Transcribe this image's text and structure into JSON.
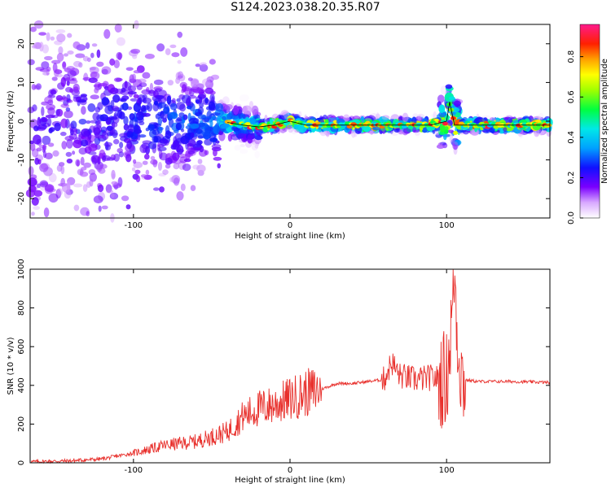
{
  "figure_title": "S124.2023.038.20.35.R07",
  "colors": {
    "axes": "#000000",
    "snr_line": "#e8302c",
    "ridge_line": "#000000",
    "background": "#ffffff"
  },
  "colorbar": {
    "label": "Normalized spectral amplitude",
    "ticks": [
      "0.0",
      "0.2",
      "0.4",
      "0.6",
      "0.8"
    ],
    "tick_values": [
      0,
      0.2,
      0.4,
      0.6,
      0.8
    ],
    "range": [
      0,
      0.96
    ],
    "colormap": "gist_ncar-like: white→purple→blue→cyan→green→yellow→orange→red→magenta"
  },
  "chart_data": [
    {
      "type": "heatmap",
      "title": "",
      "xlabel": "Height of straight line (km)",
      "ylabel": "Frequency (Hz)",
      "xlim": [
        -166,
        166
      ],
      "ylim": [
        -25,
        25
      ],
      "xticks": [
        -100,
        0,
        100
      ],
      "xtick_labels": [
        "-100",
        "0",
        "100"
      ],
      "yticks": [
        -20,
        -10,
        0,
        10,
        20
      ],
      "ytick_labels": [
        "-20",
        "-10",
        "0",
        "10",
        "20"
      ],
      "description_points": {
        "ridge_x": [
          -45,
          -30,
          -20,
          -10,
          0,
          10,
          30,
          50,
          70,
          90,
          100,
          102,
          105,
          120,
          166
        ],
        "ridge_y": [
          0,
          -1,
          -1.5,
          -1,
          0,
          -1,
          -1,
          -1,
          -1,
          -1,
          0,
          5,
          -1,
          -1,
          -1
        ]
      }
    },
    {
      "type": "line",
      "title": "",
      "xlabel": "Height of straight line (km)",
      "ylabel": "SNR (10 * v/v)",
      "xlim": [
        -166,
        166
      ],
      "ylim": [
        0,
        1000
      ],
      "xticks": [
        -100,
        0,
        100
      ],
      "xtick_labels": [
        "-100",
        "0",
        "100"
      ],
      "yticks": [
        0,
        200,
        400,
        600,
        800,
        1000
      ],
      "ytick_labels": [
        "0",
        "200",
        "400",
        "600",
        "800",
        "1000"
      ],
      "series": [
        {
          "x": [
            -166,
            -140,
            -120,
            -100,
            -80,
            -60,
            -40,
            -30,
            -20,
            -10,
            0,
            10,
            20,
            30,
            40,
            50,
            60,
            65,
            70,
            80,
            90,
            100,
            103,
            105,
            107,
            110,
            120,
            140,
            166
          ],
          "y": [
            5,
            10,
            20,
            50,
            90,
            110,
            160,
            240,
            280,
            300,
            330,
            360,
            380,
            410,
            410,
            420,
            430,
            520,
            450,
            430,
            440,
            430,
            700,
            1000,
            650,
            430,
            420,
            420,
            415
          ]
        }
      ]
    }
  ]
}
